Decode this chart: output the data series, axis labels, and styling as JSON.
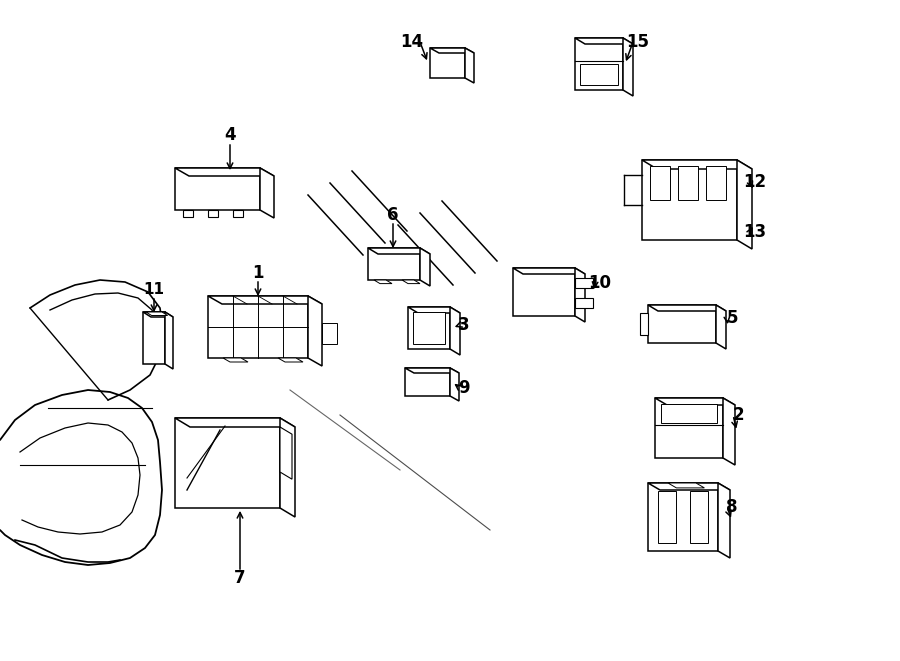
{
  "background_color": "#ffffff",
  "line_color": "#000000",
  "figsize": [
    9.0,
    6.61
  ],
  "dpi": 100
}
